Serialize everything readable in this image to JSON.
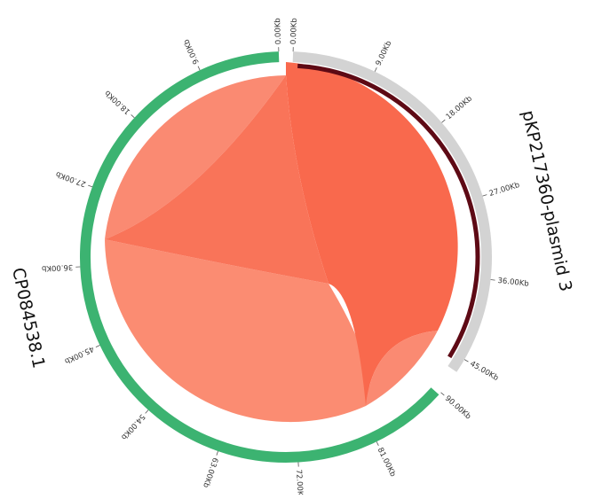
{
  "sequences": [
    {
      "name": "CP084538.1",
      "color": "#3cb371",
      "tick_labels": [
        "0.00Kb",
        "9.00Kb",
        "18.00Kb",
        "27.00Kb",
        "36.00Kb",
        "45.00Kb",
        "54.00Kb",
        "63.00Kb",
        "72.00Kb",
        "81.00Kb",
        "90.00Kb"
      ],
      "tick_step_kb": 9
    },
    {
      "name": "pKP217360-plasmid 3",
      "color": "#d3d3d3",
      "tick_labels": [
        "0.00Kb",
        "9.00Kb",
        "18.00Kb",
        "27.00Kb",
        "36.00Kb",
        "45.00Kb"
      ],
      "tick_step_kb": 9,
      "highlight_color": "#5e0a15"
    }
  ],
  "links": [
    {
      "from": "CP084538.1",
      "to": "pKP217360-plasmid 3",
      "color": "#fa7d62"
    }
  ]
}
